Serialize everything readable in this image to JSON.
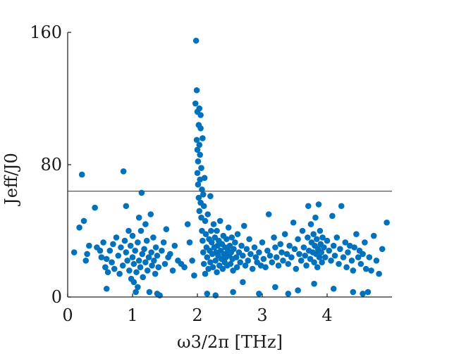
{
  "chart_data": {
    "type": "scatter",
    "title": "",
    "xlabel": "ω3/2π [THz]",
    "ylabel": "Jeff/J0",
    "xlim": [
      0,
      5
    ],
    "ylim": [
      0,
      160
    ],
    "xticks": [
      0,
      1,
      2,
      3,
      4
    ],
    "xtick_labels": [
      "0",
      "1",
      "2",
      "3",
      "4"
    ],
    "yticks": [
      0,
      80,
      160
    ],
    "ytick_labels": [
      "0",
      "80",
      "160"
    ],
    "grid": false,
    "legend": "none",
    "reference_line": {
      "y": 64
    },
    "marker_color": "#0072bd",
    "series": [
      {
        "values": [
          [
            0.1,
            27
          ],
          [
            0.18,
            42
          ],
          [
            0.22,
            74
          ],
          [
            0.25,
            46
          ],
          [
            0.28,
            22
          ],
          [
            0.3,
            26
          ],
          [
            0.33,
            31
          ],
          [
            0.42,
            54
          ],
          [
            0.45,
            30
          ],
          [
            0.5,
            28
          ],
          [
            0.52,
            24
          ],
          [
            0.55,
            33
          ],
          [
            0.58,
            18
          ],
          [
            0.6,
            23
          ],
          [
            0.62,
            15
          ],
          [
            0.65,
            28
          ],
          [
            0.68,
            21
          ],
          [
            0.7,
            32
          ],
          [
            0.72,
            17
          ],
          [
            0.75,
            36
          ],
          [
            0.78,
            25
          ],
          [
            0.8,
            14
          ],
          [
            0.82,
            30
          ],
          [
            0.85,
            19
          ],
          [
            0.86,
            76
          ],
          [
            0.88,
            34
          ],
          [
            0.9,
            27
          ],
          [
            0.9,
            55
          ],
          [
            0.92,
            22
          ],
          [
            0.94,
            40
          ],
          [
            0.95,
            16
          ],
          [
            0.97,
            31
          ],
          [
            0.98,
            11
          ],
          [
            1.0,
            24
          ],
          [
            1.0,
            37
          ],
          [
            1.02,
            20
          ],
          [
            1.02,
            9
          ],
          [
            1.04,
            28
          ],
          [
            1.05,
            3
          ],
          [
            1.06,
            15
          ],
          [
            1.08,
            33
          ],
          [
            1.08,
            6
          ],
          [
            1.1,
            22
          ],
          [
            1.1,
            48
          ],
          [
            1.12,
            18
          ],
          [
            1.13,
            40
          ],
          [
            1.14,
            63
          ],
          [
            1.15,
            26
          ],
          [
            1.16,
            12
          ],
          [
            1.18,
            29
          ],
          [
            1.2,
            21
          ],
          [
            1.2,
            44
          ],
          [
            1.22,
            34
          ],
          [
            1.23,
            16
          ],
          [
            1.25,
            24
          ],
          [
            1.26,
            3
          ],
          [
            1.28,
            50
          ],
          [
            1.29,
            27
          ],
          [
            1.3,
            19
          ],
          [
            1.32,
            36
          ],
          [
            1.33,
            22
          ],
          [
            1.35,
            14
          ],
          [
            1.36,
            30
          ],
          [
            1.38,
            25
          ],
          [
            1.4,
            18
          ],
          [
            1.42,
            1
          ],
          [
            1.45,
            28
          ],
          [
            1.48,
            33
          ],
          [
            1.5,
            20
          ],
          [
            1.52,
            41
          ],
          [
            1.55,
            24
          ],
          [
            1.58,
            26
          ],
          [
            1.62,
            16
          ],
          [
            1.65,
            31
          ],
          [
            1.7,
            22
          ],
          [
            1.75,
            20
          ],
          [
            1.8,
            18
          ],
          [
            1.85,
            44
          ],
          [
            1.88,
            33
          ],
          [
            1.92,
            22
          ],
          [
            1.95,
            13
          ],
          [
            1.97,
            117
          ],
          [
            1.98,
            155
          ],
          [
            1.99,
            125
          ],
          [
            1.99,
            95
          ],
          [
            2.0,
            89
          ],
          [
            2.0,
            112
          ],
          [
            2.0,
            75
          ],
          [
            2.01,
            82
          ],
          [
            2.01,
            68
          ],
          [
            2.02,
            104
          ],
          [
            2.02,
            60
          ],
          [
            2.03,
            114
          ],
          [
            2.03,
            92
          ],
          [
            2.03,
            52
          ],
          [
            2.04,
            86
          ],
          [
            2.04,
            71
          ],
          [
            2.05,
            102
          ],
          [
            2.05,
            110
          ],
          [
            2.05,
            57
          ],
          [
            2.06,
            78
          ],
          [
            2.06,
            48
          ],
          [
            2.07,
            65
          ],
          [
            2.07,
            40
          ],
          [
            2.08,
            96
          ],
          [
            2.08,
            34
          ],
          [
            2.09,
            62
          ],
          [
            2.09,
            27
          ],
          [
            2.1,
            55
          ],
          [
            2.1,
            20
          ],
          [
            2.11,
            72
          ],
          [
            2.12,
            46
          ],
          [
            2.12,
            14
          ],
          [
            2.13,
            38
          ],
          [
            2.14,
            30
          ],
          [
            2.15,
            24
          ],
          [
            2.15,
            2
          ],
          [
            2.16,
            50
          ],
          [
            2.17,
            17
          ],
          [
            2.18,
            35
          ],
          [
            2.19,
            28
          ],
          [
            2.2,
            21
          ],
          [
            2.2,
            61
          ],
          [
            2.21,
            40
          ],
          [
            2.22,
            33
          ],
          [
            2.23,
            26
          ],
          [
            2.24,
            18
          ],
          [
            2.25,
            44
          ],
          [
            2.26,
            30
          ],
          [
            2.27,
            36
          ],
          [
            2.28,
            22
          ],
          [
            2.29,
            27
          ],
          [
            2.3,
            15
          ],
          [
            2.3,
            40
          ],
          [
            2.31,
            31
          ],
          [
            2.32,
            25
          ],
          [
            2.33,
            34
          ],
          [
            2.34,
            19
          ],
          [
            2.35,
            46
          ],
          [
            2.36,
            28
          ],
          [
            2.37,
            23
          ],
          [
            2.38,
            32
          ],
          [
            2.39,
            17
          ],
          [
            2.4,
            37
          ],
          [
            2.41,
            26
          ],
          [
            2.42,
            21
          ],
          [
            2.43,
            30
          ],
          [
            2.44,
            24
          ],
          [
            2.45,
            35
          ],
          [
            2.46,
            19
          ],
          [
            2.47,
            28
          ],
          [
            2.48,
            42
          ],
          [
            2.49,
            25
          ],
          [
            2.5,
            31
          ],
          [
            2.51,
            20
          ],
          [
            2.52,
            27
          ],
          [
            2.53,
            36
          ],
          [
            2.54,
            23
          ],
          [
            2.55,
            16
          ],
          [
            2.56,
            29
          ],
          [
            2.58,
            33
          ],
          [
            2.6,
            24
          ],
          [
            2.61,
            18
          ],
          [
            2.62,
            38
          ],
          [
            2.64,
            27
          ],
          [
            2.66,
            21
          ],
          [
            2.68,
            31
          ],
          [
            2.7,
            25
          ],
          [
            2.72,
            43
          ],
          [
            2.74,
            19
          ],
          [
            2.76,
            29
          ],
          [
            2.78,
            22
          ],
          [
            2.8,
            35
          ],
          [
            2.82,
            26
          ],
          [
            2.85,
            17
          ],
          [
            2.88,
            30
          ],
          [
            2.9,
            24
          ],
          [
            2.92,
            21
          ],
          [
            2.95,
            27
          ],
          [
            2.98,
            19
          ],
          [
            3.0,
            33
          ],
          [
            3.02,
            23
          ],
          [
            3.05,
            18
          ],
          [
            3.08,
            28
          ],
          [
            3.1,
            50
          ],
          [
            3.12,
            25
          ],
          [
            3.15,
            21
          ],
          [
            3.18,
            36
          ],
          [
            3.2,
            30
          ],
          [
            3.22,
            24
          ],
          [
            3.25,
            19
          ],
          [
            3.28,
            32
          ],
          [
            3.3,
            27
          ],
          [
            3.32,
            22
          ],
          [
            3.35,
            38
          ],
          [
            3.38,
            26
          ],
          [
            3.4,
            20
          ],
          [
            3.42,
            31
          ],
          [
            3.45,
            24
          ],
          [
            3.48,
            45
          ],
          [
            3.5,
            29
          ],
          [
            3.52,
            17
          ],
          [
            3.55,
            35
          ],
          [
            3.57,
            26
          ],
          [
            3.6,
            22
          ],
          [
            3.62,
            40
          ],
          [
            3.64,
            30
          ],
          [
            3.66,
            25
          ],
          [
            3.68,
            19
          ],
          [
            3.7,
            36
          ],
          [
            3.71,
            55
          ],
          [
            3.72,
            28
          ],
          [
            3.74,
            23
          ],
          [
            3.75,
            44
          ],
          [
            3.76,
            33
          ],
          [
            3.78,
            27
          ],
          [
            3.79,
            38
          ],
          [
            3.8,
            21
          ],
          [
            3.81,
            31
          ],
          [
            3.82,
            48
          ],
          [
            3.83,
            26
          ],
          [
            3.84,
            35
          ],
          [
            3.85,
            18
          ],
          [
            3.86,
            29
          ],
          [
            3.87,
            56
          ],
          [
            3.88,
            24
          ],
          [
            3.89,
            40
          ],
          [
            3.9,
            32
          ],
          [
            3.91,
            27
          ],
          [
            3.92,
            21
          ],
          [
            3.93,
            36
          ],
          [
            3.95,
            30
          ],
          [
            3.97,
            24
          ],
          [
            4.0,
            34
          ],
          [
            4.03,
            28
          ],
          [
            4.06,
            22
          ],
          [
            4.08,
            49
          ],
          [
            4.1,
            31
          ],
          [
            4.12,
            25
          ],
          [
            4.15,
            36
          ],
          [
            4.18,
            20
          ],
          [
            4.2,
            29
          ],
          [
            4.22,
            55
          ],
          [
            4.25,
            24
          ],
          [
            4.28,
            33
          ],
          [
            4.3,
            18
          ],
          [
            4.32,
            27
          ],
          [
            4.35,
            31
          ],
          [
            4.38,
            22
          ],
          [
            4.4,
            16
          ],
          [
            4.42,
            30
          ],
          [
            4.45,
            38
          ],
          [
            4.48,
            24
          ],
          [
            4.5,
            28
          ],
          [
            4.52,
            20
          ],
          [
            4.55,
            26
          ],
          [
            4.58,
            33
          ],
          [
            4.6,
            17
          ],
          [
            4.63,
            3
          ],
          [
            4.65,
            24
          ],
          [
            4.68,
            16
          ],
          [
            4.72,
            37
          ],
          [
            4.76,
            22
          ],
          [
            4.8,
            14
          ],
          [
            4.85,
            29
          ],
          [
            4.92,
            45
          ],
          [
            0.6,
            5
          ],
          [
            1.38,
            2
          ],
          [
            2.28,
            1
          ],
          [
            2.55,
            3
          ],
          [
            2.95,
            2
          ],
          [
            3.4,
            2
          ],
          [
            3.55,
            4
          ],
          [
            3.8,
            8
          ],
          [
            4.1,
            5
          ],
          [
            4.4,
            3
          ],
          [
            4.55,
            2
          ],
          [
            2.7,
            9
          ],
          [
            3.2,
            6
          ]
        ]
      }
    ]
  }
}
